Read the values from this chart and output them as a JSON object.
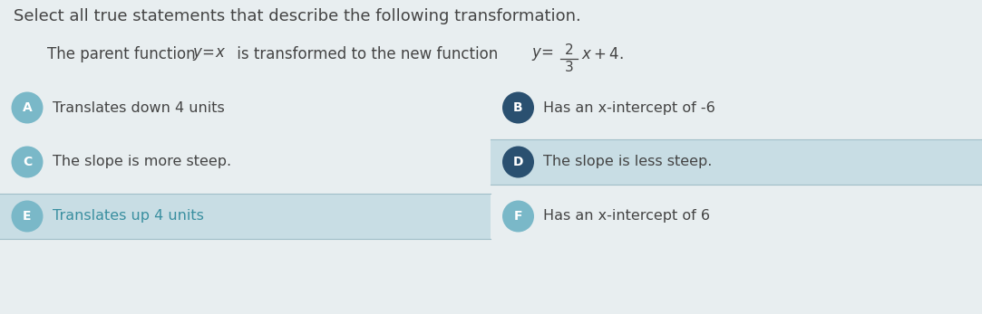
{
  "title_line1": "Select all true statements that describe the following transformation.",
  "bg_color": "#e8eef0",
  "title_color": "#444444",
  "options": [
    {
      "label": "A",
      "text": "Translates down 4 units",
      "selected": false,
      "row_highlight": false,
      "text_color": "#444444"
    },
    {
      "label": "B",
      "text": "Has an x-intercept of -6",
      "selected": true,
      "row_highlight": false,
      "text_color": "#444444"
    },
    {
      "label": "C",
      "text": "The slope is more steep.",
      "selected": false,
      "row_highlight": false,
      "text_color": "#444444"
    },
    {
      "label": "D",
      "text": "The slope is less steep.",
      "selected": true,
      "row_highlight": true,
      "text_color": "#444444"
    },
    {
      "label": "E",
      "text": "Translates up 4 units",
      "selected": false,
      "row_highlight": true,
      "text_color": "#3a8fa0"
    },
    {
      "label": "F",
      "text": "Has an x-intercept of 6",
      "selected": false,
      "row_highlight": false,
      "text_color": "#444444"
    }
  ],
  "selected_circle_color": "#2a5070",
  "unselected_circle_color": "#7ab8c8",
  "circle_text_color": "#ffffff",
  "highlight_row_color": "#c8dde4",
  "normal_row_color": "#e8eef0",
  "font_size_title": 13,
  "font_size_subtitle": 12,
  "font_size_option": 11.5,
  "font_size_label": 10
}
